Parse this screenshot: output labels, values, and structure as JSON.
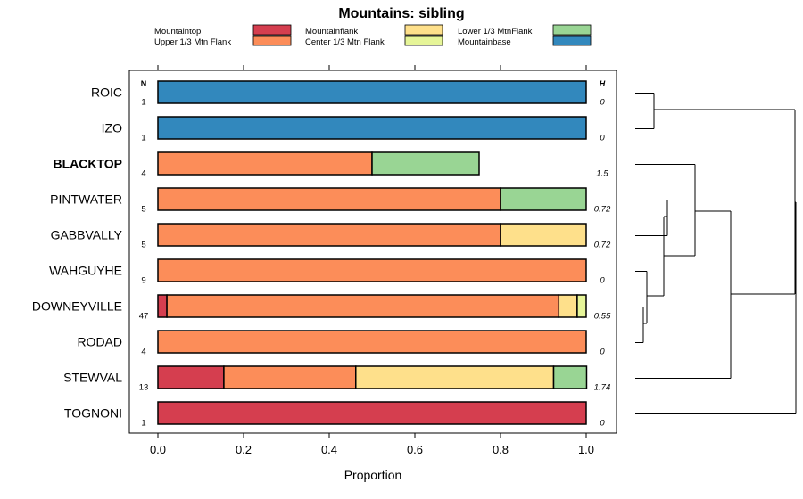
{
  "chart_data": {
    "type": "bar",
    "orientation": "horizontal",
    "stacked": true,
    "title": "Mountains: sibling",
    "xlabel": "Proportion",
    "xlim": [
      0,
      1
    ],
    "x_ticks": [
      "0.0",
      "0.2",
      "0.4",
      "0.6",
      "0.8",
      "1.0"
    ],
    "n_header": "N",
    "h_header": "H",
    "highlighted_category": "BLACKTOP",
    "legend": [
      {
        "name": "Mountaintop",
        "color": "#d53e4f"
      },
      {
        "name": "Upper 1/3 Mtn Flank",
        "color": "#fc8d59"
      },
      {
        "name": "Mountainflank",
        "color": "#fee08b"
      },
      {
        "name": "Center 1/3 Mtn Flank",
        "color": "#e6f598"
      },
      {
        "name": "Lower 1/3 MtnFlank",
        "color": "#99d594"
      },
      {
        "name": "Mountainbase",
        "color": "#3288bd"
      }
    ],
    "categories": [
      "ROIC",
      "IZO",
      "BLACKTOP",
      "PINTWATER",
      "GABBVALLY",
      "WAHGUYHE",
      "DOWNEYVILLE",
      "RODAD",
      "STEWVAL",
      "TOGNONI"
    ],
    "n": [
      "1",
      "1",
      "4",
      "5",
      "5",
      "9",
      "47",
      "4",
      "13",
      "1"
    ],
    "h": [
      "0",
      "0",
      "1.5",
      "0.72",
      "0.72",
      "0",
      "0.55",
      "0",
      "1.74",
      "0"
    ],
    "series": [
      {
        "name": "Mountaintop",
        "values": [
          0,
          0,
          0,
          0,
          0,
          0,
          0.021,
          0,
          0.154,
          1
        ]
      },
      {
        "name": "Upper 1/3 Mtn Flank",
        "values": [
          0,
          0,
          0.5,
          0.8,
          0.8,
          1,
          0.915,
          1,
          0.308,
          0
        ]
      },
      {
        "name": "Mountainflank",
        "values": [
          0,
          0,
          0,
          0,
          0.2,
          0,
          0.043,
          0,
          0.462,
          0
        ]
      },
      {
        "name": "Center 1/3 Mtn Flank",
        "values": [
          0,
          0,
          0,
          0,
          0,
          0,
          0.021,
          0,
          0,
          0
        ]
      },
      {
        "name": "Lower 1/3 MtnFlank",
        "values": [
          0,
          0,
          0.25,
          0.2,
          0,
          0,
          0,
          0,
          0.077,
          0
        ]
      },
      {
        "name": "Mountainbase",
        "values": [
          1,
          1,
          0,
          0,
          0,
          0,
          0,
          0,
          0,
          0
        ]
      }
    ],
    "dendrogram": {
      "description": "hierarchical clustering of rows",
      "merges": [
        [
          "DOWNEYVILLE",
          "RODAD"
        ],
        [
          "WAHGUYHE",
          "DOWNEYVILLE+RODAD"
        ],
        [
          "PINTWATER",
          "GABBVALLY"
        ],
        [
          "PINTWATER+GABBVALLY",
          "WAHGUYHE+DOWNEYVILLE+RODAD"
        ],
        [
          "ROIC",
          "IZO"
        ],
        [
          "BLACKTOP",
          "PINTWATER+GABBVALLY+WAHGUYHE+DOWNEYVILLE+RODAD"
        ],
        [
          "BLACKTOP-cluster",
          "STEWVAL"
        ],
        [
          "ROIC+IZO",
          "BLACKTOP-cluster+STEWVAL"
        ],
        [
          "all-but-TOGNONI",
          "TOGNONI"
        ]
      ]
    }
  }
}
